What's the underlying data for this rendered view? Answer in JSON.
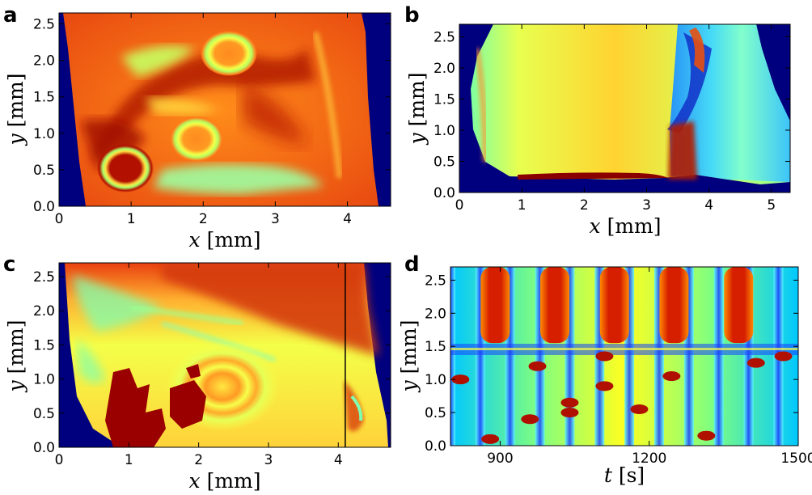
{
  "chart_data": [
    {
      "type": "heatmap",
      "panel_label": "a",
      "xlabel_var": "x",
      "xlabel_unit": "[mm]",
      "ylabel_var": "y",
      "ylabel_unit": "[mm]",
      "xlim": [
        0,
        4.6
      ],
      "ylim": [
        0,
        2.65
      ],
      "xticks": [
        0,
        1,
        2,
        3,
        4
      ],
      "yticks": [
        0.0,
        0.5,
        1.0,
        1.5,
        2.0,
        2.5
      ],
      "ytick_labels": [
        "0.0",
        "0.5",
        "1.0",
        "1.5",
        "2.0",
        "2.5"
      ],
      "colormap": "jet",
      "background_color": "#00007f"
    },
    {
      "type": "heatmap",
      "panel_label": "b",
      "xlabel_var": "x",
      "xlabel_unit": "[mm]",
      "ylabel_var": "y",
      "ylabel_unit": "[mm]",
      "xlim": [
        0,
        5.3
      ],
      "ylim": [
        0,
        2.7
      ],
      "xticks": [
        0,
        1,
        2,
        3,
        4,
        5
      ],
      "yticks": [
        0.0,
        0.5,
        1.0,
        1.5,
        2.0,
        2.5
      ],
      "ytick_labels": [
        "0.0",
        "0.5",
        "1.0",
        "1.5",
        "2.0",
        "2.5"
      ],
      "colormap": "jet",
      "background_color": "#00007f"
    },
    {
      "type": "heatmap",
      "panel_label": "c",
      "xlabel_var": "x",
      "xlabel_unit": "[mm]",
      "ylabel_var": "y",
      "ylabel_unit": "[mm]",
      "xlim": [
        0,
        4.75
      ],
      "ylim": [
        0,
        2.7
      ],
      "xticks": [
        0,
        1,
        2,
        3,
        4
      ],
      "yticks": [
        0.0,
        0.5,
        1.0,
        1.5,
        2.0,
        2.5
      ],
      "ytick_labels": [
        "0.0",
        "0.5",
        "1.0",
        "1.5",
        "2.0",
        "2.5"
      ],
      "vertical_line_x": 4.1,
      "colormap": "jet",
      "background_color": "#00007f"
    },
    {
      "type": "heatmap",
      "panel_label": "d",
      "xlabel_var": "t",
      "xlabel_unit": "[s]",
      "ylabel_var": "y",
      "ylabel_unit": "[mm]",
      "xlim": [
        800,
        1500
      ],
      "ylim": [
        0,
        2.7
      ],
      "xticks": [
        900,
        1200,
        1500
      ],
      "yticks": [
        0.0,
        0.5,
        1.0,
        1.5,
        2.0,
        2.5
      ],
      "ytick_labels": [
        "0.0",
        "0.5",
        "1.0",
        "1.5",
        "2.0",
        "2.5"
      ],
      "periodic_red_bands_t": [
        890,
        1010,
        1130,
        1250,
        1380
      ],
      "colormap": "jet"
    }
  ]
}
